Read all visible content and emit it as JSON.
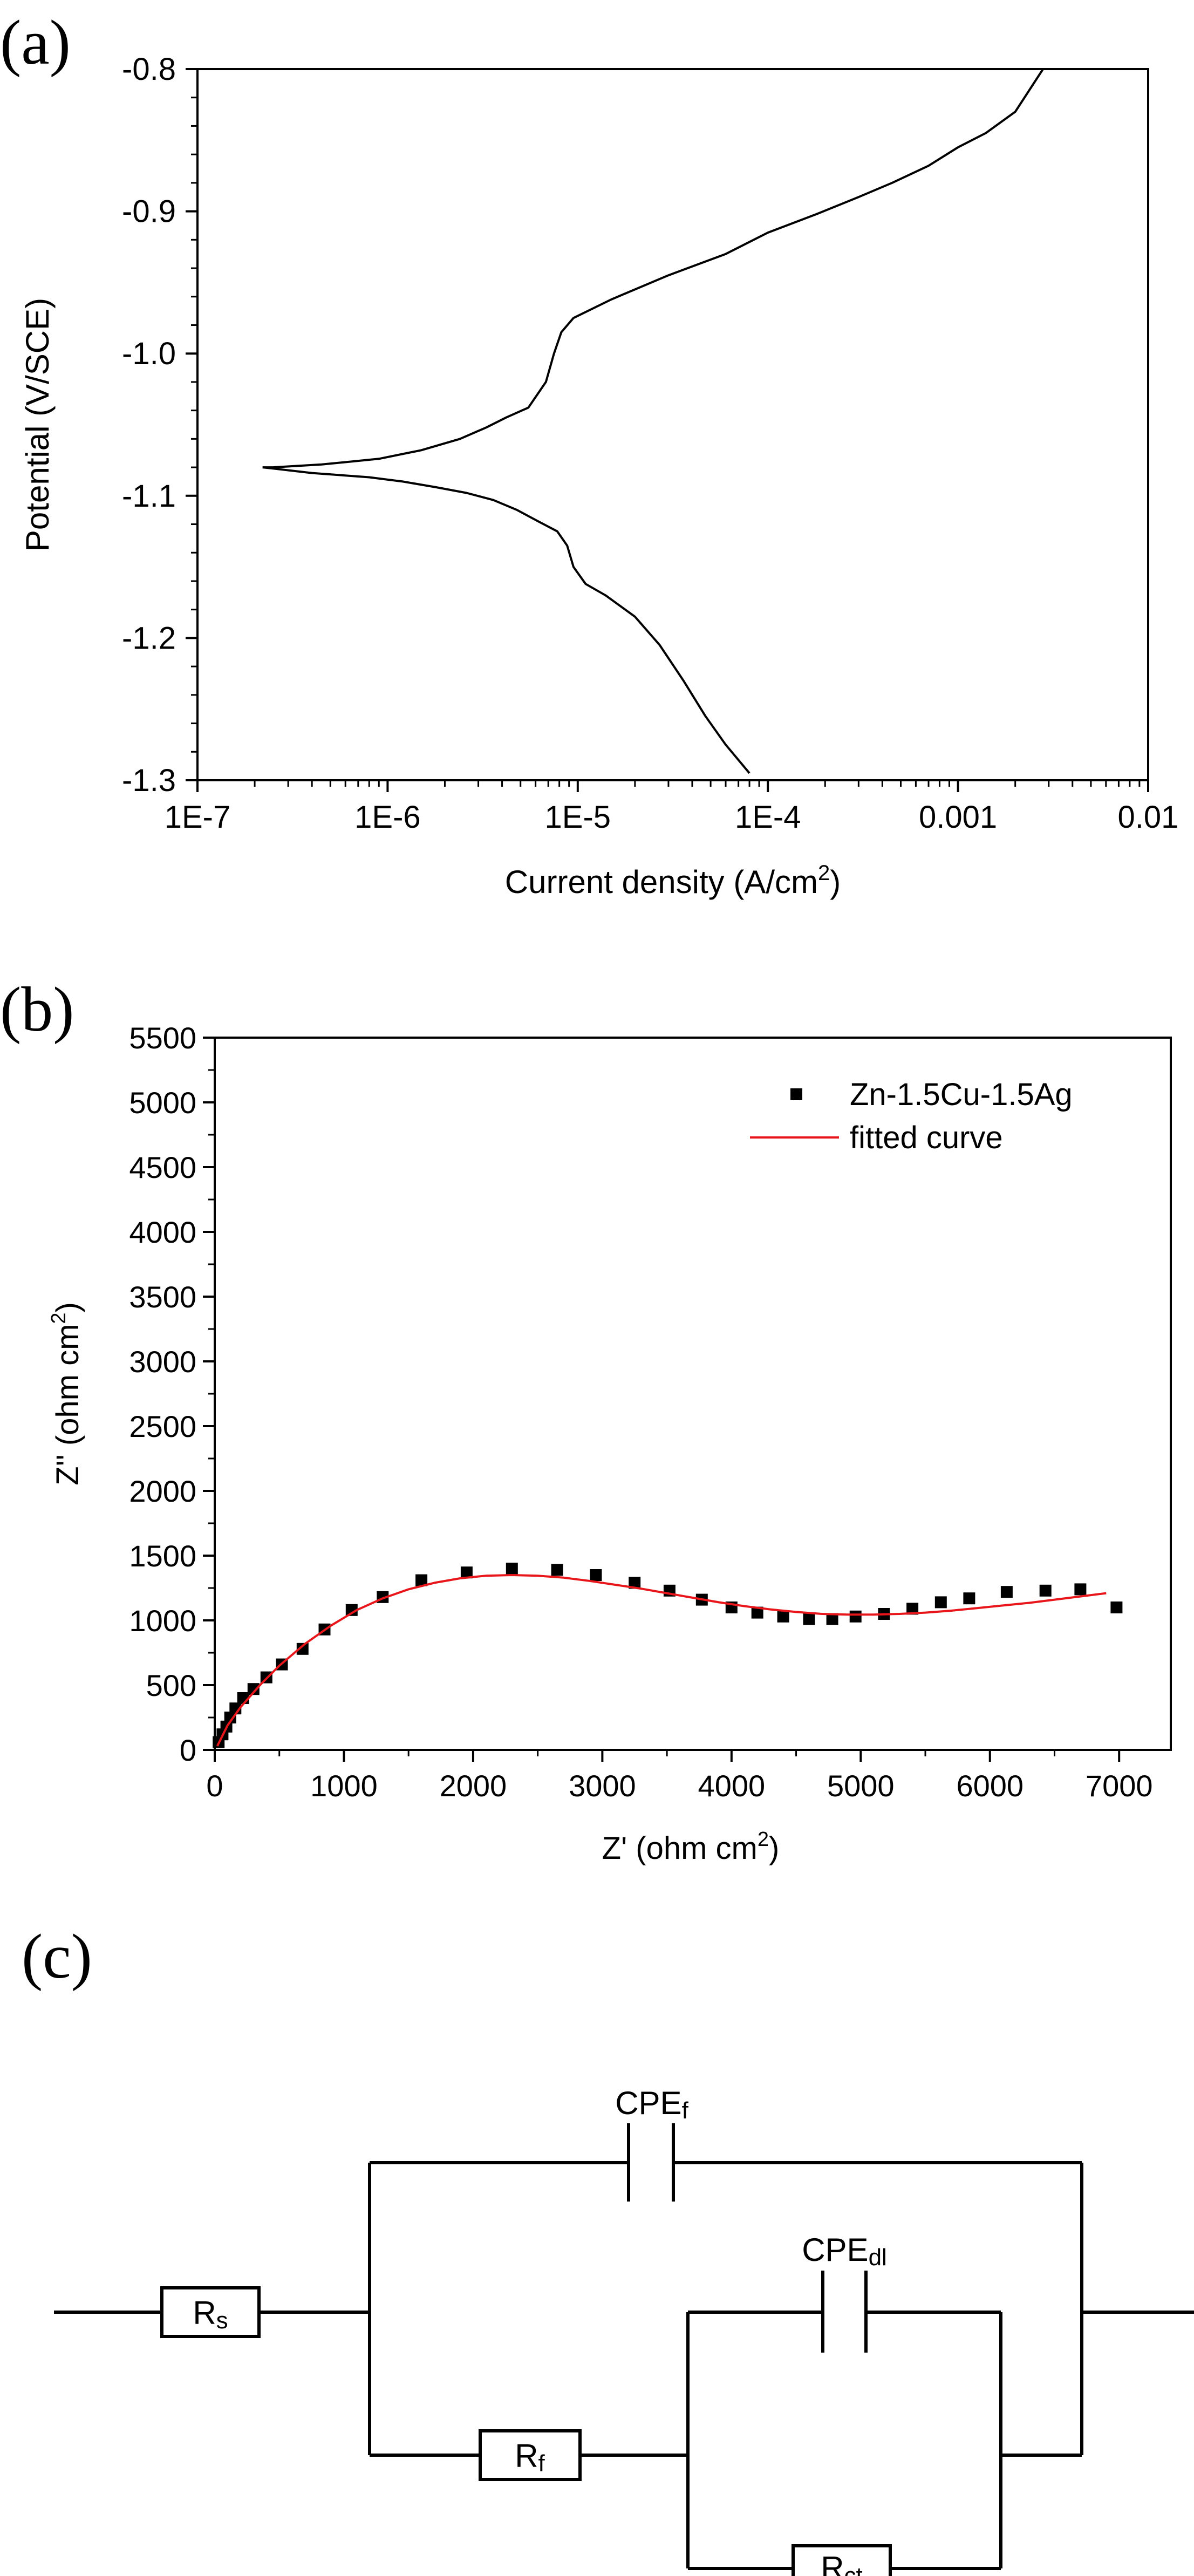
{
  "panels": {
    "a_label": "(a)",
    "b_label": "(b)",
    "c_label": "(c)"
  },
  "chart_data": [
    {
      "type": "line",
      "panel": "(a)",
      "xlabel": "Current density (A/cm",
      "xlabel_sup": "2",
      "xlabel_tail": ")",
      "ylabel": "Potential (V/SCE)",
      "x_scale": "log",
      "xlim": [
        1e-07,
        0.01
      ],
      "ylim": [
        -1.3,
        -0.8
      ],
      "x_ticks": [
        1e-07,
        1e-06,
        1e-05,
        0.0001,
        0.001,
        0.01
      ],
      "x_tick_labels": [
        "1E-7",
        "1E-6",
        "1E-5",
        "1E-4",
        "0.001",
        "0.01"
      ],
      "y_ticks": [
        -1.3,
        -1.2,
        -1.1,
        -1.0,
        -0.9,
        -0.8
      ],
      "y_tick_labels": [
        "-1.3",
        "-1.2",
        "-1.1",
        "-1.0",
        "-0.9",
        "-0.8"
      ],
      "color": "#000000",
      "series": [
        {
          "values_x": [
            0.0028,
            0.002,
            0.0014,
            0.001,
            0.0007,
            0.00045,
            0.0003,
            0.00018,
            0.0001,
            6e-05,
            3e-05,
            1.5e-05,
            9.5e-06,
            8.2e-06,
            7.5e-06,
            6.8e-06,
            5.5e-06,
            4.2e-06,
            3.3e-06,
            2.4e-06,
            1.5e-06,
            9e-07,
            4.5e-07,
            2.5e-07,
            2.2e-07
          ],
          "values_y": [
            -0.8,
            -0.83,
            -0.845,
            -0.855,
            -0.868,
            -0.88,
            -0.89,
            -0.902,
            -0.915,
            -0.93,
            -0.945,
            -0.962,
            -0.975,
            -0.985,
            -1.0,
            -1.02,
            -1.038,
            -1.045,
            -1.052,
            -1.06,
            -1.068,
            -1.074,
            -1.078,
            -1.08,
            -1.08
          ]
        },
        {
          "values_x": [
            2.2e-07,
            4e-07,
            8e-07,
            1.2e-06,
            1.8e-06,
            2.6e-06,
            3.6e-06,
            4.8e-06,
            6.2e-06,
            7.8e-06,
            8.8e-06,
            9.5e-06,
            1.1e-05,
            1.4e-05,
            2e-05,
            2.7e-05,
            3.6e-05,
            4.7e-05,
            6e-05,
            8e-05
          ],
          "values_y": [
            -1.08,
            -1.084,
            -1.087,
            -1.09,
            -1.094,
            -1.098,
            -1.103,
            -1.11,
            -1.118,
            -1.125,
            -1.135,
            -1.15,
            -1.162,
            -1.17,
            -1.185,
            -1.205,
            -1.23,
            -1.255,
            -1.275,
            -1.295
          ]
        }
      ]
    },
    {
      "type": "scatter",
      "panel": "(b)",
      "xlabel": "Z' (ohm cm",
      "xlabel_sup": "2",
      "xlabel_tail": ")",
      "ylabel": "Z'' (ohm cm",
      "ylabel_sup": "2",
      "ylabel_tail": ")",
      "xlim": [
        0,
        7400
      ],
      "ylim": [
        0,
        5500
      ],
      "x_ticks": [
        0,
        1000,
        2000,
        3000,
        4000,
        5000,
        6000,
        7000
      ],
      "y_ticks": [
        0,
        500,
        1000,
        1500,
        2000,
        2500,
        3000,
        3500,
        4000,
        4500,
        5000,
        5500
      ],
      "legend_position": "top-right",
      "series": [
        {
          "name": "Zn-1.5Cu-1.5Ag",
          "marker": "square",
          "color": "#000000",
          "x": [
            30,
            60,
            90,
            120,
            160,
            220,
            300,
            400,
            520,
            680,
            850,
            1060,
            1300,
            1600,
            1950,
            2300,
            2650,
            2950,
            3250,
            3520,
            3770,
            4000,
            4200,
            4400,
            4600,
            4780,
            4960,
            5180,
            5400,
            5620,
            5840,
            6130,
            6430,
            6700,
            6980
          ],
          "y": [
            60,
            120,
            180,
            250,
            320,
            400,
            470,
            560,
            660,
            780,
            930,
            1080,
            1180,
            1310,
            1370,
            1400,
            1390,
            1350,
            1290,
            1230,
            1160,
            1100,
            1060,
            1030,
            1010,
            1010,
            1030,
            1050,
            1090,
            1140,
            1170,
            1220,
            1230,
            1240,
            1100
          ]
        },
        {
          "name": "fitted curve",
          "marker": "line",
          "color": "#e8161b",
          "x": [
            20,
            100,
            200,
            350,
            500,
            700,
            900,
            1100,
            1300,
            1500,
            1700,
            1900,
            2100,
            2300,
            2500,
            2700,
            2900,
            3100,
            3300,
            3500,
            3700,
            3900,
            4100,
            4300,
            4500,
            4700,
            4900,
            5100,
            5300,
            5500,
            5700,
            5900,
            6100,
            6300,
            6500,
            6700,
            6900
          ],
          "y": [
            30,
            190,
            330,
            500,
            650,
            820,
            960,
            1080,
            1170,
            1240,
            1290,
            1325,
            1345,
            1350,
            1345,
            1330,
            1305,
            1275,
            1245,
            1210,
            1175,
            1140,
            1110,
            1085,
            1065,
            1050,
            1045,
            1045,
            1050,
            1060,
            1075,
            1095,
            1115,
            1135,
            1160,
            1185,
            1210
          ]
        }
      ]
    }
  ],
  "circuit": {
    "rs": "R",
    "rs_sub": "s",
    "rf": "R",
    "rf_sub": "f",
    "rct": "R",
    "rct_sub": "ct",
    "cpef": "CPE",
    "cpef_sub": "f",
    "cpedl": "CPE",
    "cpedl_sub": "dl"
  }
}
